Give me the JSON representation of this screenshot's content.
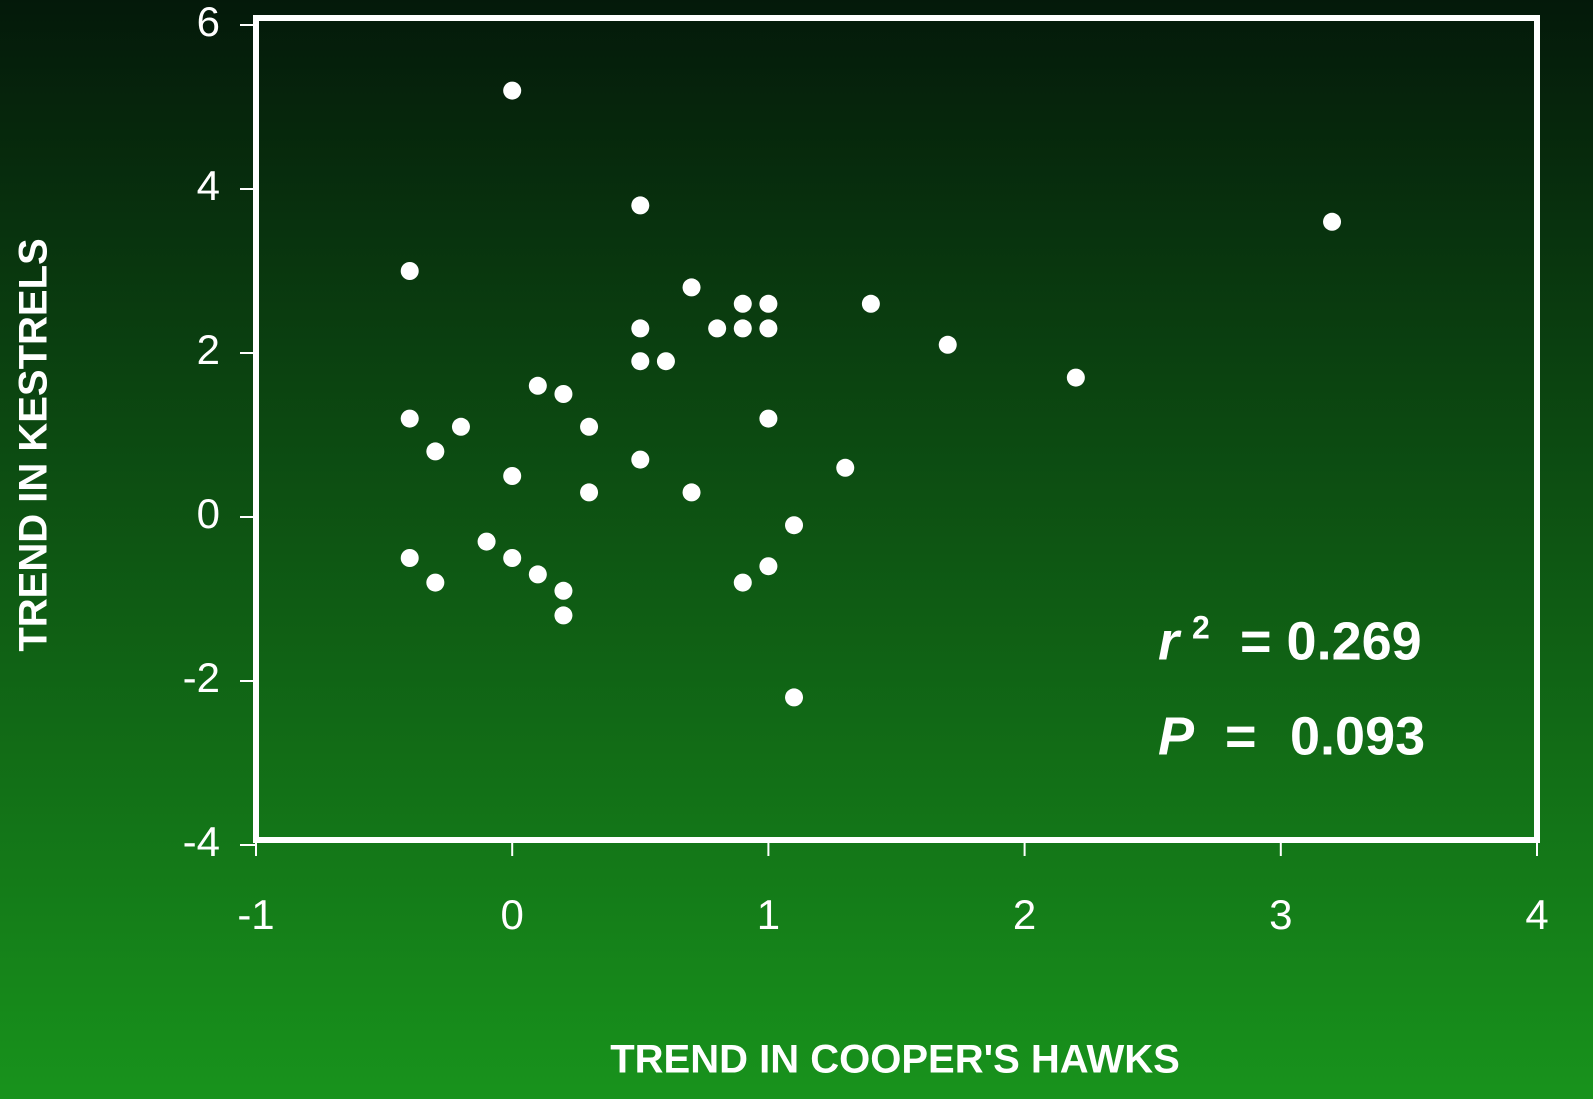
{
  "chart_data": {
    "type": "scatter",
    "x_label": "TREND IN COOPER'S HAWKS",
    "y_label": "TREND IN KESTRELS",
    "annotations": [
      "r",
      "2",
      "= 0.269",
      "P",
      "=",
      "0.093"
    ],
    "color": "#ffffff",
    "x": [
      0,
      0.5,
      -0.4,
      3.2,
      0.7,
      0.9,
      1.0,
      1.4,
      0.5,
      0.8,
      0.9,
      1.0,
      1.7,
      0.5,
      0.6,
      2.2,
      0.1,
      0.2,
      -0.4,
      -0.2,
      0.3,
      1.0,
      -0.3,
      0.5,
      1.3,
      0,
      0.3,
      0.7,
      1.1,
      -0.1,
      -0.4,
      0,
      0.1,
      1.0,
      -0.3,
      0.9,
      0.2,
      0.2,
      1.1
    ],
    "values": [
      5.2,
      3.8,
      3.0,
      3.6,
      2.8,
      2.6,
      2.6,
      2.6,
      2.3,
      2.3,
      2.3,
      2.3,
      2.1,
      1.9,
      1.9,
      1.7,
      1.6,
      1.5,
      1.2,
      1.1,
      1.1,
      1.2,
      0.8,
      0.7,
      0.6,
      0.5,
      0.3,
      0.3,
      -0.1,
      -0.3,
      -0.5,
      -0.5,
      -0.7,
      -0.6,
      -0.8,
      -0.8,
      -0.9,
      -1.2,
      -2.2
    ],
    "xlim": [
      -1,
      4
    ],
    "xticks": [
      -1,
      0,
      1,
      2,
      3,
      4
    ],
    "ylim": [
      -4,
      6
    ],
    "yticks": [
      -4,
      -2,
      0,
      2,
      4,
      6
    ]
  }
}
